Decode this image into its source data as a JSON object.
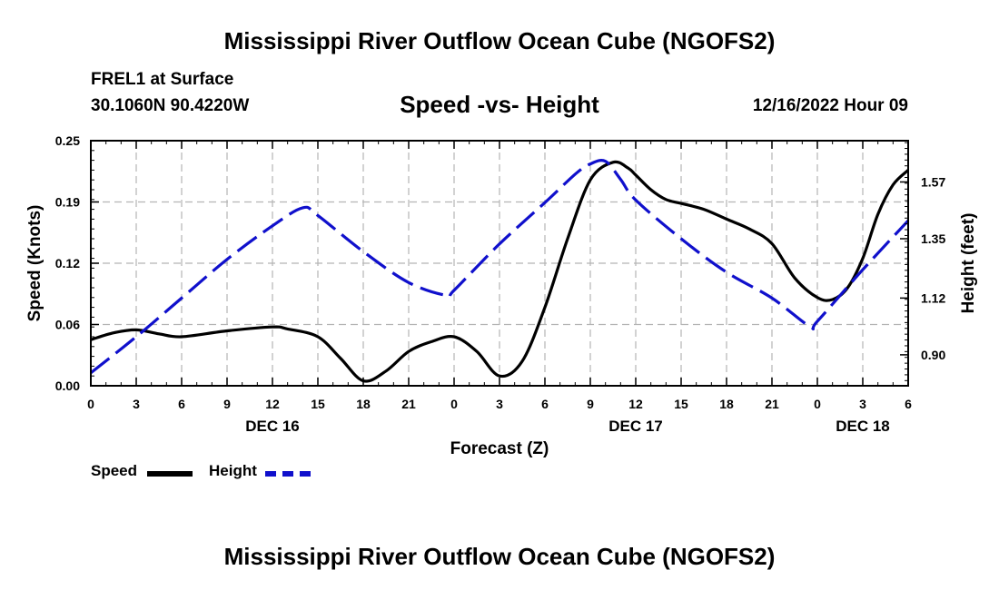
{
  "header": {
    "title": "Mississippi River Outflow Ocean Cube (NGOFS2)",
    "station_name": "FREL1 at Surface",
    "station_coords": "30.1060N  90.4220W",
    "subtitle": "Speed -vs- Height",
    "timestamp": "12/16/2022 Hour 09"
  },
  "footer": {
    "title": "Mississippi River Outflow Ocean Cube (NGOFS2)"
  },
  "legend": {
    "speed_label": "Speed",
    "height_label": "Height"
  },
  "colors": {
    "speed": "#000000",
    "height": "#1010cc",
    "grid": "#b4b4b4"
  },
  "chart_data": {
    "type": "line",
    "title": "Speed -vs- Height",
    "xlabel": "Forecast (Z)",
    "ylabel": "Speed (Knots)",
    "ylabel_right": "Height (feet)",
    "x_range": [
      0,
      54
    ],
    "ylim": [
      0,
      0.25
    ],
    "ylim_right": [
      0.78,
      1.73
    ],
    "x_ticks": [
      0,
      3,
      6,
      9,
      12,
      15,
      18,
      21,
      24,
      27,
      30,
      33,
      36,
      39,
      42,
      45,
      48,
      51,
      54
    ],
    "x_tick_labels": [
      "0",
      "3",
      "6",
      "9",
      "12",
      "15",
      "18",
      "21",
      "0",
      "3",
      "6",
      "9",
      "12",
      "15",
      "18",
      "21",
      "0",
      "3",
      "6"
    ],
    "day_labels": [
      {
        "x": 12,
        "label": "DEC 16"
      },
      {
        "x": 36,
        "label": "DEC 17"
      },
      {
        "x": 51,
        "label": "DEC 18"
      }
    ],
    "y_ticks": [
      0,
      0.0625,
      0.125,
      0.1875,
      0.25
    ],
    "y_tick_labels": [
      "0.00",
      "0.06",
      "0.12",
      "0.19",
      "0.25"
    ],
    "y_right_ticks": [
      0.9,
      1.12,
      1.35,
      1.57
    ],
    "y_right_tick_labels": [
      "0.90",
      "1.12",
      "1.35",
      "1.57"
    ],
    "grid": true,
    "series": [
      {
        "name": "Speed",
        "axis": "left",
        "style": "solid",
        "x": [
          0,
          1.5,
          3,
          4.5,
          6,
          9,
          12,
          13,
          15,
          16.5,
          18,
          19.5,
          21,
          22.5,
          24,
          25.5,
          27,
          28.5,
          30,
          31.5,
          33,
          34.5,
          35.5,
          36,
          37,
          38,
          39,
          40.5,
          42,
          43.5,
          45,
          46.5,
          48,
          49,
          50,
          51,
          52,
          53,
          54
        ],
        "values": [
          0.047,
          0.054,
          0.057,
          0.053,
          0.05,
          0.056,
          0.06,
          0.058,
          0.05,
          0.028,
          0.005,
          0.015,
          0.035,
          0.045,
          0.05,
          0.035,
          0.01,
          0.025,
          0.08,
          0.15,
          0.21,
          0.228,
          0.222,
          0.215,
          0.2,
          0.19,
          0.186,
          0.18,
          0.17,
          0.16,
          0.145,
          0.11,
          0.09,
          0.088,
          0.1,
          0.13,
          0.175,
          0.205,
          0.22
        ]
      },
      {
        "name": "Height",
        "axis": "right",
        "style": "dashed",
        "x": [
          0,
          3,
          6,
          9,
          12,
          14,
          15,
          18,
          21,
          23.5,
          24,
          27,
          30,
          32,
          33,
          34,
          35,
          36,
          39,
          42,
          45,
          47.5,
          48,
          51,
          54
        ],
        "values": [
          0.83,
          0.97,
          1.12,
          1.27,
          1.4,
          1.47,
          1.44,
          1.3,
          1.18,
          1.13,
          1.15,
          1.33,
          1.49,
          1.6,
          1.64,
          1.65,
          1.58,
          1.5,
          1.35,
          1.22,
          1.12,
          1.01,
          1.03,
          1.23,
          1.42
        ]
      }
    ]
  }
}
